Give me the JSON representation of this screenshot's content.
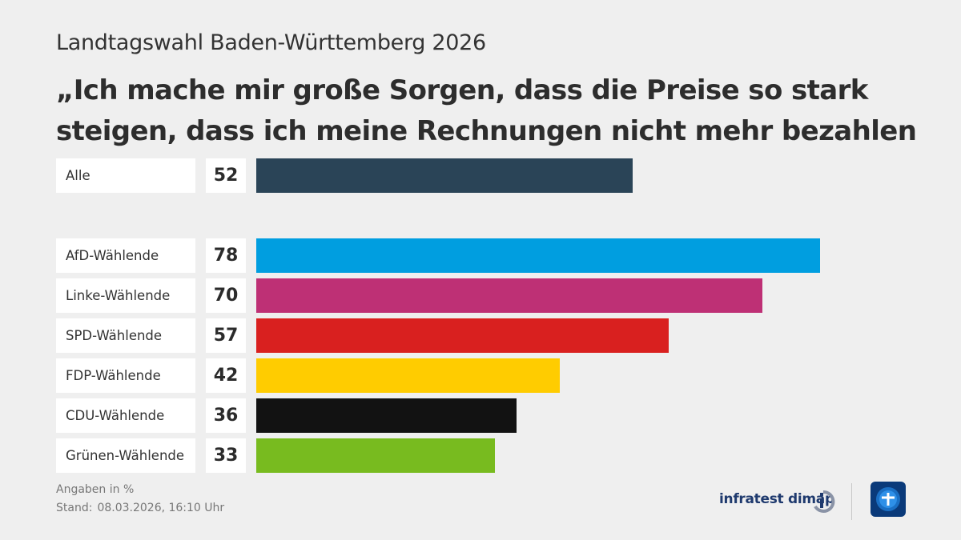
{
  "header": {
    "subtitle": "Landtagswahl Baden-Württemberg 2026",
    "title": "„Ich mache mir große Sorgen, dass die Preise so stark steigen, dass ich meine Rechnungen nicht mehr bezahlen kann.“"
  },
  "chart_data": {
    "type": "bar",
    "orientation": "horizontal",
    "categories": [
      "Alle",
      "AfD-Wählende",
      "Linke-Wählende",
      "SPD-Wählende",
      "FDP-Wählende",
      "CDU-Wählende",
      "Grünen-Wählende"
    ],
    "values": [
      52,
      78,
      70,
      57,
      42,
      36,
      33
    ],
    "colors": [
      "#2a4457",
      "#009ee0",
      "#be3075",
      "#d9201f",
      "#ffcc00",
      "#121212",
      "#78bb1f"
    ],
    "xlim": [
      0,
      100
    ],
    "grid": false,
    "legend": "none"
  },
  "footer": {
    "unit_note": "Angaben in %",
    "stand_label": "Stand:",
    "stand_value": "08.03.2026, 16:10 Uhr",
    "source_brand": "infratest dimap",
    "brand_icon": "infratest-dimap-logo",
    "broadcaster_icon": "tagesschau-logo"
  }
}
